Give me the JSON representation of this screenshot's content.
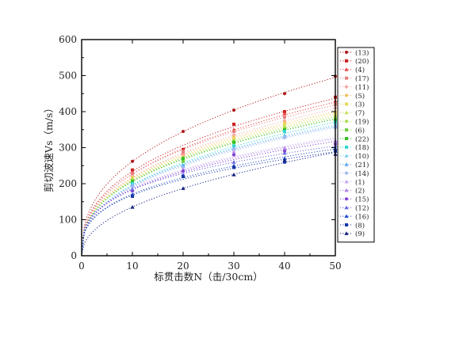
{
  "chart_data": {
    "type": "scatter",
    "xlabel": "标贯击数N（击/30cm）",
    "ylabel": "剪切波速Vs（m/s）",
    "xlim": [
      0,
      50
    ],
    "ylim": [
      0,
      600
    ],
    "xticks": [
      0,
      10,
      20,
      30,
      40,
      50
    ],
    "yticks": [
      0,
      100,
      200,
      300,
      400,
      500,
      600
    ],
    "grid": false,
    "legend_position": "right",
    "x": [
      10,
      20,
      30,
      40,
      50
    ],
    "series": [
      {
        "name": "(13)",
        "color": "#b01818",
        "marker": "circle",
        "values": [
          262,
          345,
          404,
          450,
          498
        ]
      },
      {
        "name": "(20)",
        "color": "#cc2020",
        "marker": "square",
        "values": [
          238,
          295,
          365,
          400,
          440
        ]
      },
      {
        "name": "(4)",
        "color": "#ea4040",
        "marker": "triangle",
        "values": [
          232,
          285,
          350,
          395,
          430
        ]
      },
      {
        "name": "(17)",
        "color": "#e88080",
        "marker": "square",
        "values": [
          228,
          290,
          345,
          385,
          420
        ]
      },
      {
        "name": "(11)",
        "color": "#f2a8a8",
        "marker": "diamond",
        "values": [
          220,
          280,
          335,
          375,
          410
        ]
      },
      {
        "name": "(5)",
        "color": "#f0c060",
        "marker": "circle",
        "values": [
          218,
          275,
          330,
          370,
          400
        ]
      },
      {
        "name": "(3)",
        "color": "#e8d860",
        "marker": "square",
        "values": [
          215,
          270,
          325,
          365,
          395
        ]
      },
      {
        "name": "(7)",
        "color": "#c8e060",
        "marker": "triangle",
        "values": [
          212,
          268,
          320,
          360,
          390
        ]
      },
      {
        "name": "(19)",
        "color": "#a8e050",
        "marker": "circle",
        "values": [
          210,
          265,
          318,
          355,
          385
        ]
      },
      {
        "name": "(6)",
        "color": "#70d040",
        "marker": "square",
        "values": [
          208,
          262,
          315,
          350,
          380
        ]
      },
      {
        "name": "(22)",
        "color": "#30c020",
        "marker": "square",
        "values": [
          205,
          270,
          315,
          350,
          375
        ]
      },
      {
        "name": "(18)",
        "color": "#30d8d0",
        "marker": "square",
        "values": [
          200,
          250,
          305,
          345,
          370
        ]
      },
      {
        "name": "(10)",
        "color": "#80d0f0",
        "marker": "triangle",
        "values": [
          198,
          248,
          300,
          335,
          365
        ]
      },
      {
        "name": "(21)",
        "color": "#60a8f0",
        "marker": "triangle",
        "values": [
          195,
          250,
          298,
          330,
          360
        ]
      },
      {
        "name": "(14)",
        "color": "#a0b8f0",
        "marker": "diamond",
        "values": [
          192,
          245,
          295,
          328,
          355
        ]
      },
      {
        "name": "(1)",
        "color": "#c8a8f0",
        "marker": "triangle",
        "values": [
          185,
          240,
          290,
          300,
          320
        ]
      },
      {
        "name": "(2)",
        "color": "#b080e8",
        "marker": "triangle",
        "values": [
          182,
          238,
          285,
          295,
          318
        ]
      },
      {
        "name": "(15)",
        "color": "#8040d0",
        "marker": "circle",
        "values": [
          180,
          235,
          280,
          290,
          310
        ]
      },
      {
        "name": "(12)",
        "color": "#6868e0",
        "marker": "triangle",
        "values": [
          185,
          225,
          260,
          285,
          305
        ]
      },
      {
        "name": "(16)",
        "color": "#2050c8",
        "marker": "triangle",
        "values": [
          170,
          220,
          250,
          270,
          298
        ]
      },
      {
        "name": "(8)",
        "color": "#1838a8",
        "marker": "square",
        "values": [
          165,
          220,
          245,
          260,
          290
        ]
      },
      {
        "name": "(9)",
        "color": "#102080",
        "marker": "triangle",
        "values": [
          135,
          187,
          225,
          265,
          282
        ]
      }
    ]
  }
}
